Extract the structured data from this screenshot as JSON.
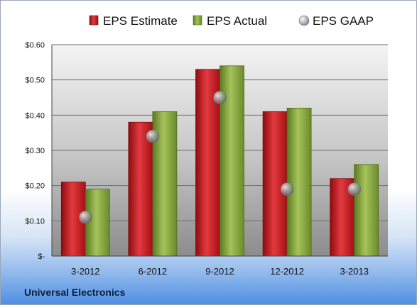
{
  "chart_data": {
    "type": "bar",
    "categories": [
      "3-2012",
      "6-2012",
      "9-2012",
      "12-2012",
      "3-2013"
    ],
    "series": [
      {
        "name": "EPS Estimate",
        "kind": "bar",
        "color": "#c8161d",
        "values": [
          0.21,
          0.38,
          0.53,
          0.41,
          0.22
        ]
      },
      {
        "name": "EPS Actual",
        "kind": "bar",
        "color": "#7a9a32",
        "values": [
          0.19,
          0.41,
          0.54,
          0.42,
          0.26
        ]
      },
      {
        "name": "EPS GAAP",
        "kind": "scatter",
        "color": "#8a8f96",
        "values": [
          0.11,
          0.34,
          0.45,
          0.19,
          0.19
        ]
      }
    ],
    "yticks": [
      {
        "value": 0.6,
        "label": "$0.60"
      },
      {
        "value": 0.5,
        "label": "$0.50"
      },
      {
        "value": 0.4,
        "label": "$0.40"
      },
      {
        "value": 0.3,
        "label": "$0.30"
      },
      {
        "value": 0.2,
        "label": "$0.20"
      },
      {
        "value": 0.1,
        "label": "$0.10"
      },
      {
        "value": 0,
        "label": "$-"
      }
    ],
    "ylim": [
      0,
      0.6
    ],
    "grid": true,
    "legend_position": "top"
  },
  "company": "Universal Electronics"
}
